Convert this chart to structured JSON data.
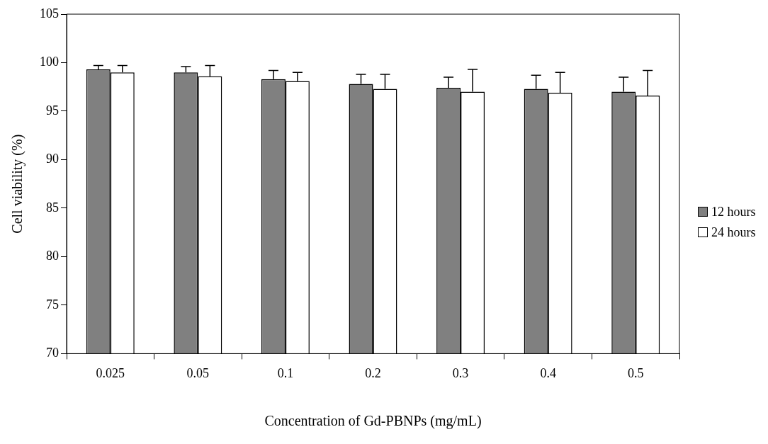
{
  "chart_data": {
    "type": "bar",
    "xlabel": "Concentration of Gd-PBNPs (mg/mL)",
    "ylabel": "Cell viability (%)",
    "categories": [
      "0.025",
      "0.05",
      "0.1",
      "0.2",
      "0.3",
      "0.4",
      "0.5"
    ],
    "series": [
      {
        "name": "12 hours",
        "color": "#808080",
        "values": [
          99.3,
          99.0,
          98.3,
          97.8,
          97.4,
          97.3,
          97.0
        ],
        "errors": [
          [
            99.3,
            99.7
          ],
          [
            99.0,
            99.6
          ],
          [
            98.3,
            99.2
          ],
          [
            97.8,
            98.8
          ],
          [
            97.4,
            98.5
          ],
          [
            97.3,
            98.7
          ],
          [
            97.0,
            98.5
          ]
        ]
      },
      {
        "name": "24 hours",
        "color": "#ffffff",
        "values": [
          99.0,
          98.6,
          98.1,
          97.3,
          97.0,
          96.9,
          96.6
        ],
        "errors": [
          [
            99.0,
            99.7
          ],
          [
            98.6,
            99.7
          ],
          [
            98.1,
            99.0
          ],
          [
            97.3,
            98.8
          ],
          [
            97.0,
            99.3
          ],
          [
            96.9,
            99.0
          ],
          [
            96.6,
            99.2
          ]
        ]
      }
    ],
    "ylim": [
      70,
      105
    ],
    "yticks": [
      70,
      75,
      80,
      85,
      90,
      95,
      100,
      105
    ],
    "grid": false,
    "legend": "right"
  }
}
